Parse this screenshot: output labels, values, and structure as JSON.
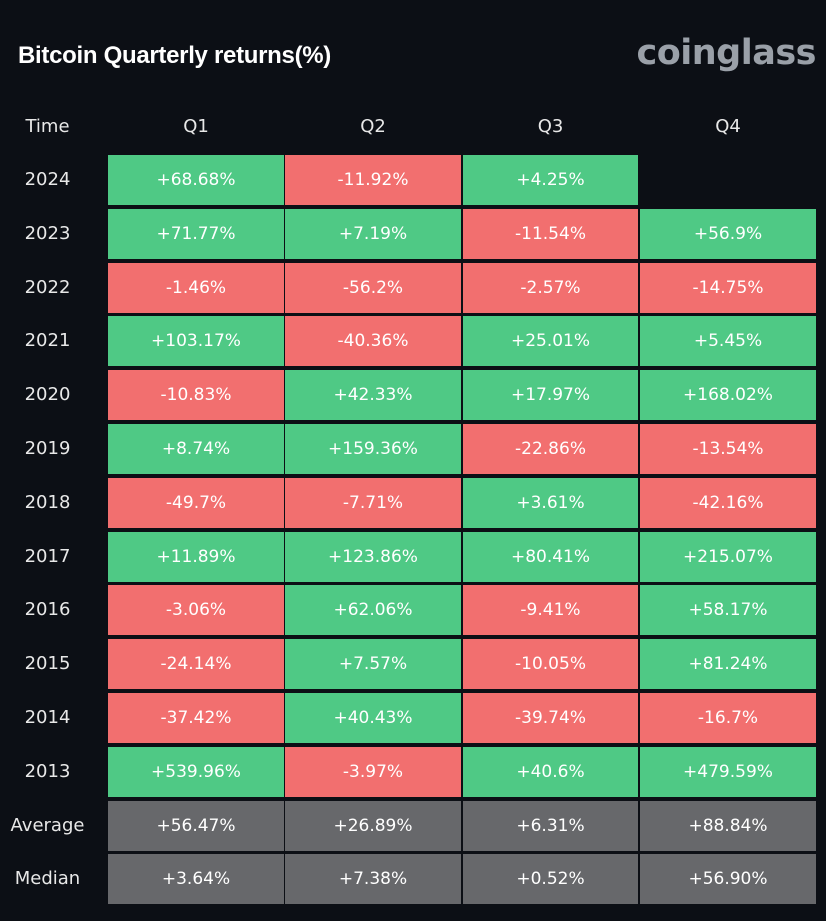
{
  "header": {
    "title": "Bitcoin Quarterly returns(%)",
    "brand": "coinglass"
  },
  "colors": {
    "positive": "#4fc985",
    "negative": "#f26f6f",
    "summary": "#67686b",
    "background": "#0c0f15"
  },
  "chart_data": {
    "type": "heatmap",
    "title": "Bitcoin Quarterly returns(%)",
    "row_header": "Time",
    "columns": [
      "Q1",
      "Q2",
      "Q3",
      "Q4"
    ],
    "rows": [
      {
        "label": "2024",
        "values": [
          "+68.68%",
          "-11.92%",
          "+4.25%",
          ""
        ]
      },
      {
        "label": "2023",
        "values": [
          "+71.77%",
          "+7.19%",
          "-11.54%",
          "+56.9%"
        ]
      },
      {
        "label": "2022",
        "values": [
          "-1.46%",
          "-56.2%",
          "-2.57%",
          "-14.75%"
        ]
      },
      {
        "label": "2021",
        "values": [
          "+103.17%",
          "-40.36%",
          "+25.01%",
          "+5.45%"
        ]
      },
      {
        "label": "2020",
        "values": [
          "-10.83%",
          "+42.33%",
          "+17.97%",
          "+168.02%"
        ]
      },
      {
        "label": "2019",
        "values": [
          "+8.74%",
          "+159.36%",
          "-22.86%",
          "-13.54%"
        ]
      },
      {
        "label": "2018",
        "values": [
          "-49.7%",
          "-7.71%",
          "+3.61%",
          "-42.16%"
        ]
      },
      {
        "label": "2017",
        "values": [
          "+11.89%",
          "+123.86%",
          "+80.41%",
          "+215.07%"
        ]
      },
      {
        "label": "2016",
        "values": [
          "-3.06%",
          "+62.06%",
          "-9.41%",
          "+58.17%"
        ]
      },
      {
        "label": "2015",
        "values": [
          "-24.14%",
          "+7.57%",
          "-10.05%",
          "+81.24%"
        ]
      },
      {
        "label": "2014",
        "values": [
          "-37.42%",
          "+40.43%",
          "-39.74%",
          "-16.7%"
        ]
      },
      {
        "label": "2013",
        "values": [
          "+539.96%",
          "-3.97%",
          "+40.6%",
          "+479.59%"
        ]
      }
    ],
    "summary": [
      {
        "label": "Average",
        "values": [
          "+56.47%",
          "+26.89%",
          "+6.31%",
          "+88.84%"
        ]
      },
      {
        "label": "Median",
        "values": [
          "+3.64%",
          "+7.38%",
          "+0.52%",
          "+56.90%"
        ]
      }
    ]
  }
}
